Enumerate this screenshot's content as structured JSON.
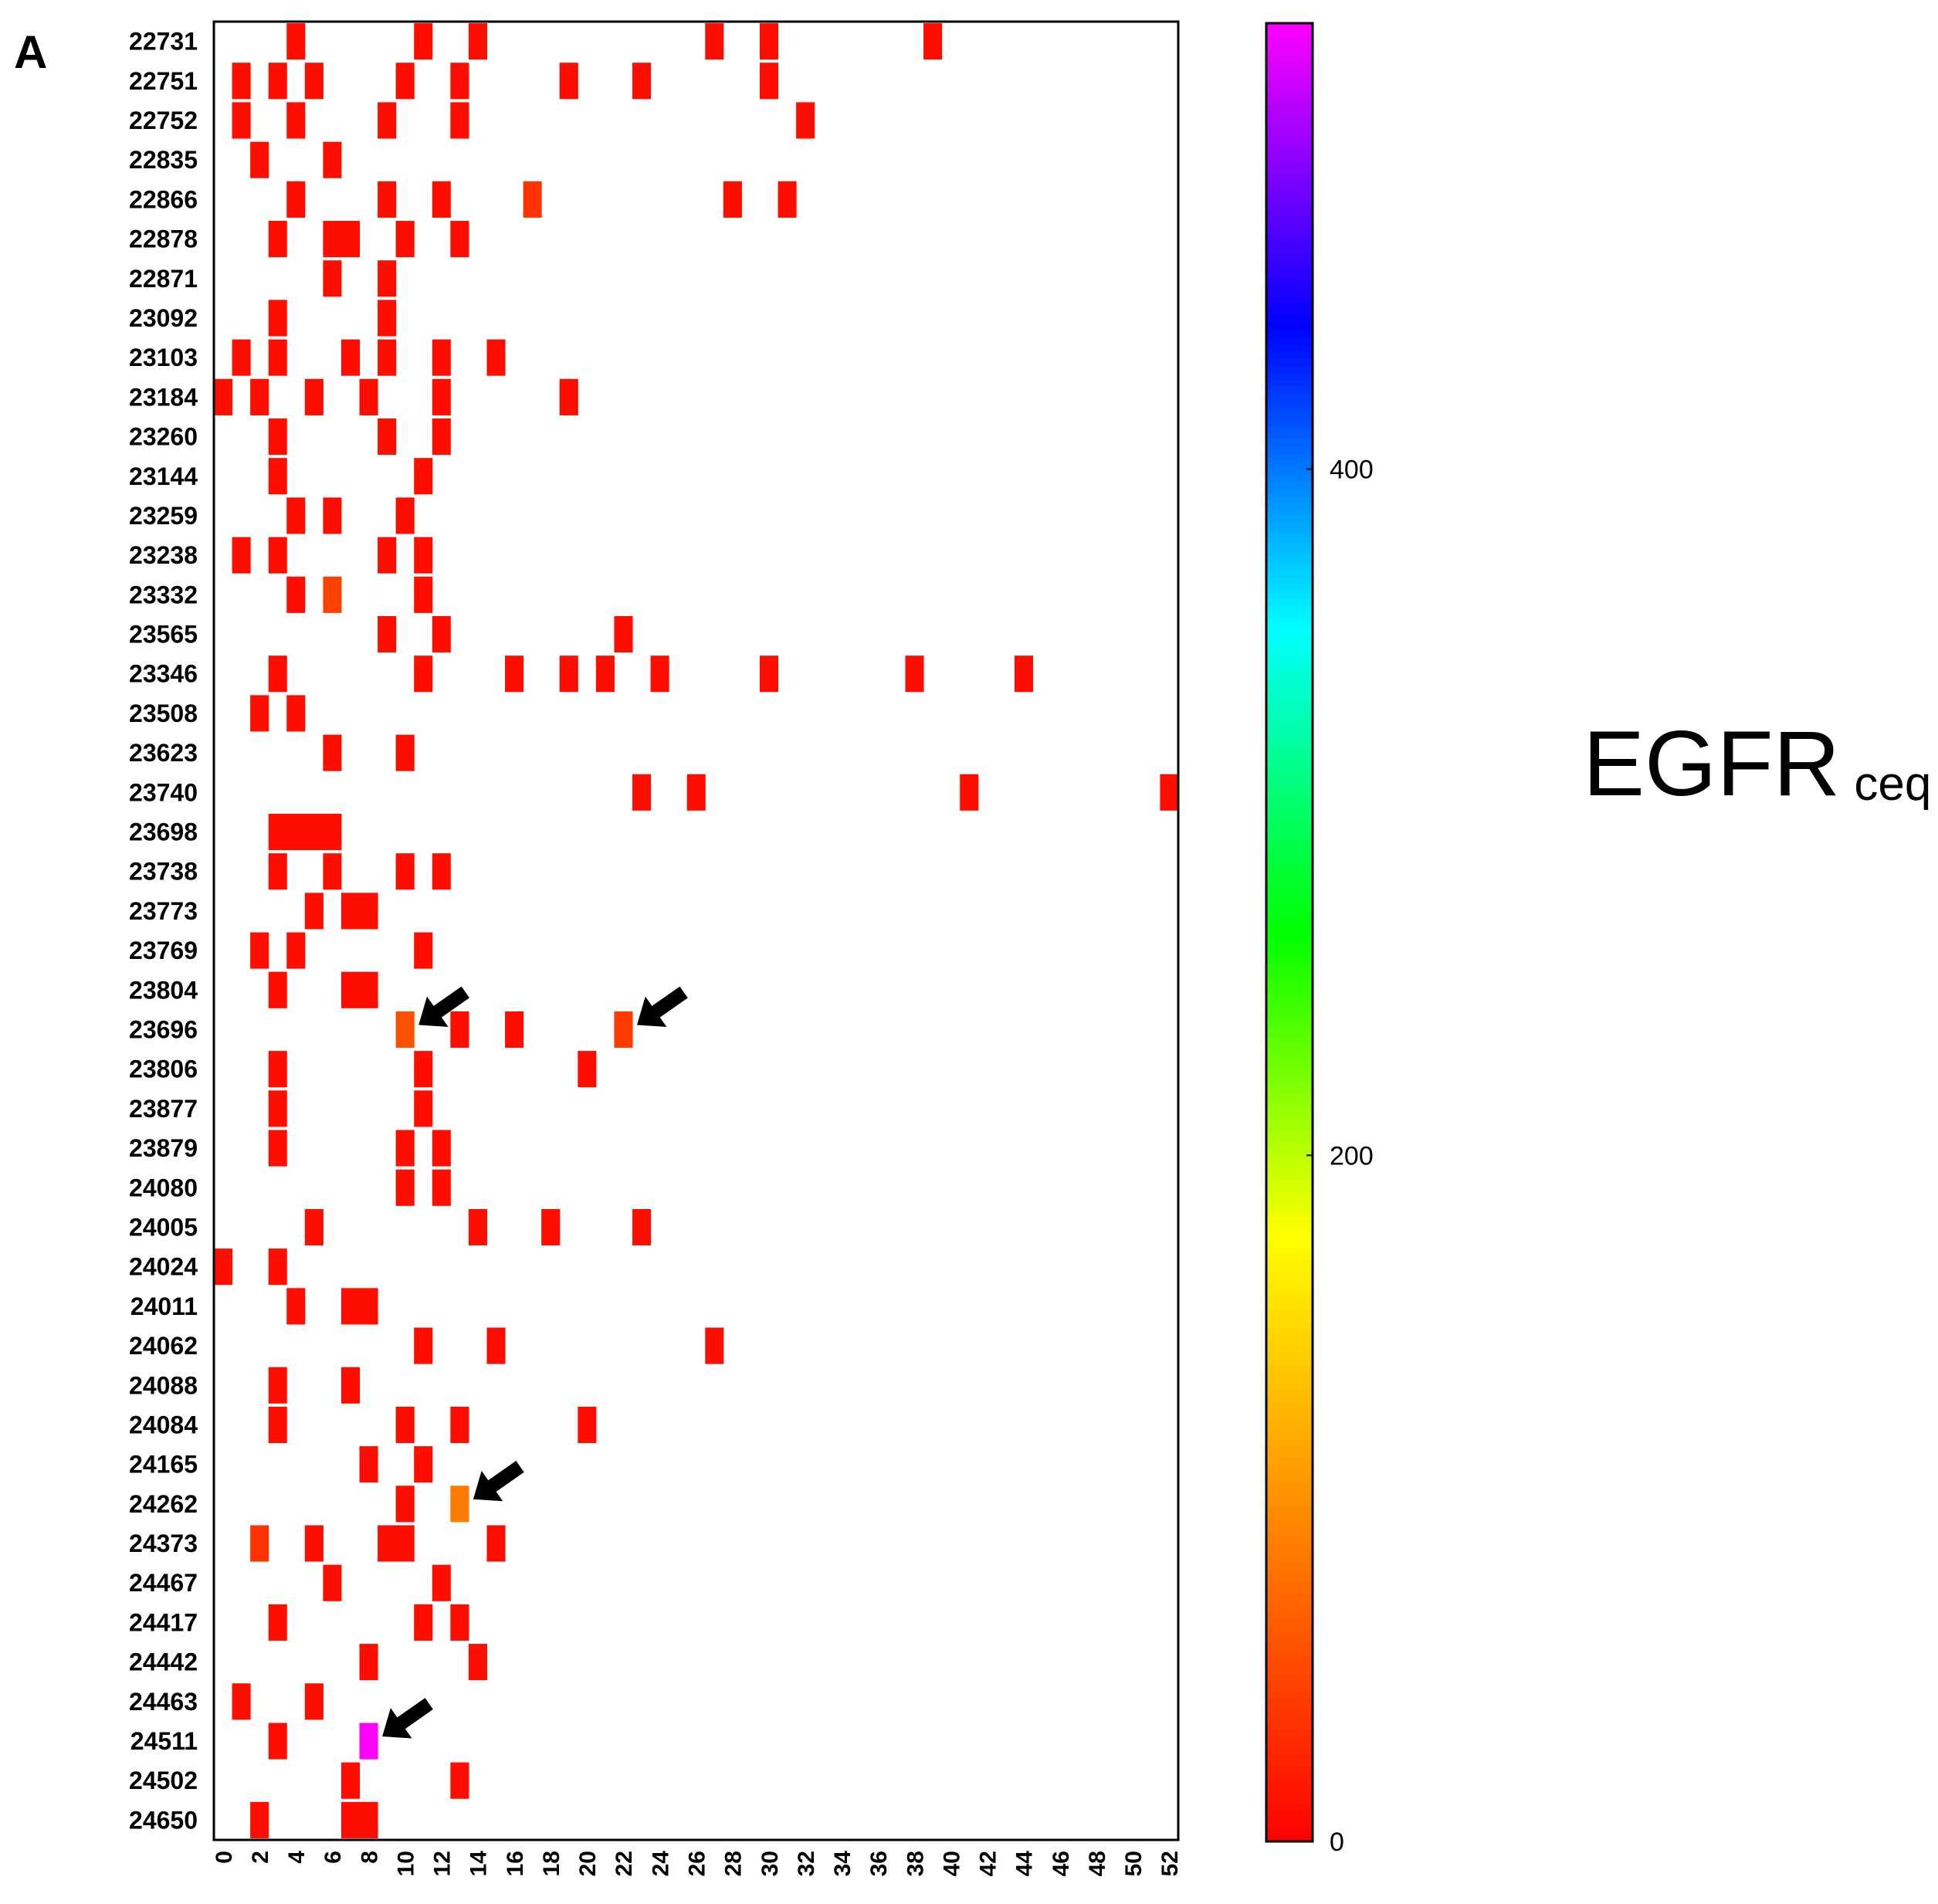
{
  "panel_label": "A",
  "title_main": "EGFR",
  "title_sub": "ceq",
  "chart_data": {
    "type": "heatmap",
    "x_range": [
      0,
      53
    ],
    "x_ticks": [
      "0",
      "2",
      "4",
      "6",
      "8",
      "10",
      "12",
      "14",
      "16",
      "18",
      "20",
      "22",
      "24",
      "26",
      "28",
      "30",
      "32",
      "34",
      "36",
      "38",
      "40",
      "42",
      "44",
      "46",
      "48",
      "50",
      "52"
    ],
    "y_categories": [
      "22731",
      "22751",
      "22752",
      "22835",
      "22866",
      "22878",
      "22871",
      "23092",
      "23103",
      "23184",
      "23260",
      "23144",
      "23259",
      "23238",
      "23332",
      "23565",
      "23346",
      "23508",
      "23623",
      "23740",
      "23698",
      "23738",
      "23773",
      "23769",
      "23804",
      "23696",
      "23806",
      "23877",
      "23879",
      "24080",
      "24005",
      "24024",
      "24011",
      "24062",
      "24088",
      "24084",
      "24165",
      "24262",
      "24373",
      "24467",
      "24417",
      "24442",
      "24463",
      "24511",
      "24502",
      "24650"
    ],
    "colorbar": {
      "min": 0,
      "max": 530,
      "ticks": [
        "0",
        "200",
        "400"
      ],
      "colors": [
        "#ff0000",
        "#ff8000",
        "#ffff00",
        "#00ff00",
        "#00ffff",
        "#0000ff",
        "#ff00ff"
      ]
    },
    "cells": [
      {
        "row": "22731",
        "x": [
          4,
          11,
          14,
          27,
          30,
          39
        ],
        "value": 10
      },
      {
        "row": "22751",
        "x": [
          1,
          3,
          5,
          10,
          13,
          19,
          23,
          30
        ],
        "value": 10
      },
      {
        "row": "22752",
        "x": [
          1,
          4,
          9,
          13,
          32
        ],
        "value": 10
      },
      {
        "row": "22835",
        "x": [
          2,
          6
        ],
        "value": 10
      },
      {
        "row": "22866",
        "x": [
          4,
          9,
          12,
          28,
          31
        ],
        "value": 10
      },
      {
        "row": "22866",
        "x": [
          17
        ],
        "value": 35
      },
      {
        "row": "22878",
        "x": [
          3,
          6,
          7,
          10,
          13
        ],
        "value": 10
      },
      {
        "row": "22871",
        "x": [
          6,
          9
        ],
        "value": 10
      },
      {
        "row": "23092",
        "x": [
          3,
          9
        ],
        "value": 10
      },
      {
        "row": "23103",
        "x": [
          1,
          3,
          7,
          9,
          12,
          15
        ],
        "value": 10
      },
      {
        "row": "23184",
        "x": [
          0,
          2,
          5,
          8,
          12,
          19
        ],
        "value": 10
      },
      {
        "row": "23260",
        "x": [
          3,
          9,
          12
        ],
        "value": 10
      },
      {
        "row": "23144",
        "x": [
          3,
          11
        ],
        "value": 10
      },
      {
        "row": "23259",
        "x": [
          4,
          6,
          10
        ],
        "value": 10
      },
      {
        "row": "23238",
        "x": [
          1,
          3,
          9,
          11
        ],
        "value": 10
      },
      {
        "row": "23332",
        "x": [
          4,
          11
        ],
        "value": 10
      },
      {
        "row": "23332",
        "x": [
          6
        ],
        "value": 45
      },
      {
        "row": "23565",
        "x": [
          9,
          12,
          22
        ],
        "value": 10
      },
      {
        "row": "23346",
        "x": [
          3,
          11,
          16,
          19,
          21,
          24,
          30,
          38,
          44
        ],
        "value": 10
      },
      {
        "row": "23508",
        "x": [
          2,
          4
        ],
        "value": 10
      },
      {
        "row": "23623",
        "x": [
          6,
          10
        ],
        "value": 10
      },
      {
        "row": "23740",
        "x": [
          23,
          26,
          41,
          52
        ],
        "value": 10
      },
      {
        "row": "23698",
        "x": [
          3,
          4,
          5,
          6
        ],
        "value": 10
      },
      {
        "row": "23738",
        "x": [
          3,
          6,
          10,
          12
        ],
        "value": 10
      },
      {
        "row": "23773",
        "x": [
          5,
          7,
          8
        ],
        "value": 10
      },
      {
        "row": "23769",
        "x": [
          2,
          4,
          11
        ],
        "value": 10
      },
      {
        "row": "23804",
        "x": [
          3,
          7,
          8
        ],
        "value": 10
      },
      {
        "row": "23696",
        "x": [
          10
        ],
        "value": 55
      },
      {
        "row": "23696",
        "x": [
          22
        ],
        "value": 40
      },
      {
        "row": "23696",
        "x": [
          13,
          16
        ],
        "value": 10
      },
      {
        "row": "23806",
        "x": [
          3,
          11,
          20
        ],
        "value": 10
      },
      {
        "row": "23877",
        "x": [
          3,
          11
        ],
        "value": 10
      },
      {
        "row": "23879",
        "x": [
          3,
          10,
          12
        ],
        "value": 10
      },
      {
        "row": "24080",
        "x": [
          10,
          12
        ],
        "value": 10
      },
      {
        "row": "24005",
        "x": [
          5,
          14,
          18,
          23
        ],
        "value": 10
      },
      {
        "row": "24024",
        "x": [
          0,
          3
        ],
        "value": 10
      },
      {
        "row": "24011",
        "x": [
          4,
          7,
          8
        ],
        "value": 10
      },
      {
        "row": "24062",
        "x": [
          11,
          15,
          27
        ],
        "value": 10
      },
      {
        "row": "24088",
        "x": [
          3,
          7
        ],
        "value": 10
      },
      {
        "row": "24084",
        "x": [
          3,
          10,
          13,
          20
        ],
        "value": 10
      },
      {
        "row": "24165",
        "x": [
          8,
          11
        ],
        "value": 10
      },
      {
        "row": "24262",
        "x": [
          10
        ],
        "value": 10
      },
      {
        "row": "24262",
        "x": [
          13
        ],
        "value": 85
      },
      {
        "row": "24373",
        "x": [
          2
        ],
        "value": 35
      },
      {
        "row": "24373",
        "x": [
          5,
          9,
          10,
          15
        ],
        "value": 10
      },
      {
        "row": "24467",
        "x": [
          6,
          12
        ],
        "value": 10
      },
      {
        "row": "24417",
        "x": [
          3,
          11,
          13
        ],
        "value": 10
      },
      {
        "row": "24442",
        "x": [
          8,
          14
        ],
        "value": 10
      },
      {
        "row": "24463",
        "x": [
          1,
          5
        ],
        "value": 10
      },
      {
        "row": "24511",
        "x": [
          3
        ],
        "value": 10
      },
      {
        "row": "24511",
        "x": [
          8
        ],
        "value": 530
      },
      {
        "row": "24502",
        "x": [
          7,
          13
        ],
        "value": 10
      },
      {
        "row": "24650",
        "x": [
          2,
          7,
          8
        ],
        "value": 10
      }
    ],
    "arrows": [
      {
        "row": "23696",
        "x": 10
      },
      {
        "row": "23696",
        "x": 22
      },
      {
        "row": "24262",
        "x": 13
      },
      {
        "row": "24511",
        "x": 8
      }
    ]
  }
}
